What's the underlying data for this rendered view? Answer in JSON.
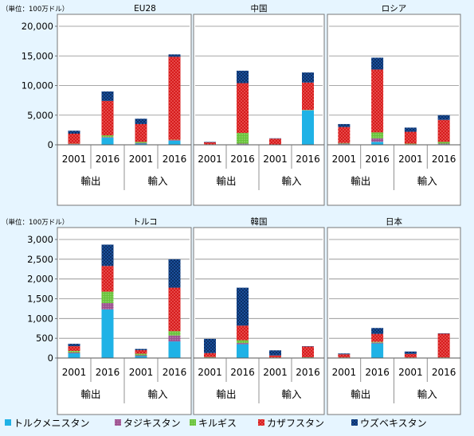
{
  "unit_label": "（単位：100万ドル）",
  "groups": [
    "輸出",
    "輸入"
  ],
  "colors": {
    "トルクメニスタン": "#1fb2e6",
    "タジキスタン": "#9b4f8e",
    "キルギス": "#67c23a",
    "カザフスタン": "#d61c1c",
    "ウズベキスタン": "#1a4f9a",
    "panel_bg": "#ffffff",
    "page_bg": "#e6f5ff"
  },
  "legend": [
    "トルクメニスタン",
    "タジキスタン",
    "キルギス",
    "カザフスタン",
    "ウズベキスタン"
  ],
  "chart_data": [
    {
      "type": "bar",
      "stacked": true,
      "title": "EU28",
      "ylim": [
        0,
        20000
      ],
      "yticks": [
        "0",
        "5,000",
        "10,000",
        "15,000",
        "20,000"
      ],
      "categories": [
        "2001",
        "2016",
        "2001",
        "2016"
      ],
      "groups": [
        "輸出",
        "輸入"
      ],
      "series": [
        {
          "name": "トルクメニスタン",
          "values": [
            100,
            1200,
            200,
            700
          ]
        },
        {
          "name": "タジキスタン",
          "values": [
            30,
            100,
            100,
            100
          ]
        },
        {
          "name": "キルギス",
          "values": [
            50,
            300,
            200,
            50
          ]
        },
        {
          "name": "カザフスタン",
          "values": [
            1700,
            5800,
            3000,
            14000
          ]
        },
        {
          "name": "ウズベキスタン",
          "values": [
            500,
            1600,
            900,
            400
          ]
        }
      ]
    },
    {
      "type": "bar",
      "stacked": true,
      "title": "中国",
      "ylim": [
        0,
        20000
      ],
      "categories": [
        "2001",
        "2016",
        "2001",
        "2016"
      ],
      "groups": [
        "輸出",
        "輸入"
      ],
      "series": [
        {
          "name": "トルクメニスタン",
          "values": [
            20,
            100,
            20,
            5800
          ]
        },
        {
          "name": "タジキスタン",
          "values": [
            10,
            100,
            10,
            50
          ]
        },
        {
          "name": "キルギス",
          "values": [
            50,
            1800,
            10,
            50
          ]
        },
        {
          "name": "カザフスタン",
          "values": [
            350,
            8400,
            1000,
            4600
          ]
        },
        {
          "name": "ウズベキスタン",
          "values": [
            70,
            2100,
            60,
            1700
          ]
        }
      ]
    },
    {
      "type": "bar",
      "stacked": true,
      "title": "ロシア",
      "ylim": [
        0,
        20000
      ],
      "categories": [
        "2001",
        "2016",
        "2001",
        "2016"
      ],
      "groups": [
        "輸出",
        "輸入"
      ],
      "series": [
        {
          "name": "トルクメニスタン",
          "values": [
            100,
            500,
            50,
            100
          ]
        },
        {
          "name": "タジキスタン",
          "values": [
            100,
            600,
            50,
            100
          ]
        },
        {
          "name": "キルギス",
          "values": [
            100,
            1000,
            100,
            300
          ]
        },
        {
          "name": "カザフスタン",
          "values": [
            2700,
            10600,
            2000,
            3700
          ]
        },
        {
          "name": "ウズベキスタン",
          "values": [
            500,
            2000,
            700,
            800
          ]
        }
      ]
    },
    {
      "type": "bar",
      "stacked": true,
      "title": "トルコ",
      "ylim": [
        0,
        3000
      ],
      "yticks": [
        "0",
        "500",
        "1,000",
        "1,500",
        "2,000",
        "2,500",
        "3,000"
      ],
      "categories": [
        "2001",
        "2016",
        "2001",
        "2016"
      ],
      "groups": [
        "輸出",
        "輸入"
      ],
      "series": [
        {
          "name": "トルクメニスタン",
          "values": [
            120,
            1230,
            50,
            420
          ]
        },
        {
          "name": "タジキスタン",
          "values": [
            20,
            160,
            20,
            150
          ]
        },
        {
          "name": "キルギス",
          "values": [
            40,
            290,
            40,
            110
          ]
        },
        {
          "name": "カザフスタン",
          "values": [
            120,
            650,
            90,
            1100
          ]
        },
        {
          "name": "ウズベキスタン",
          "values": [
            60,
            540,
            30,
            720
          ]
        }
      ]
    },
    {
      "type": "bar",
      "stacked": true,
      "title": "韓国",
      "ylim": [
        0,
        3000
      ],
      "categories": [
        "2001",
        "2016",
        "2001",
        "2016"
      ],
      "groups": [
        "輸出",
        "輸入"
      ],
      "series": [
        {
          "name": "トルクメニスタン",
          "values": [
            10,
            350,
            5,
            10
          ]
        },
        {
          "name": "タジキスタン",
          "values": [
            5,
            30,
            5,
            5
          ]
        },
        {
          "name": "キルギス",
          "values": [
            10,
            70,
            5,
            5
          ]
        },
        {
          "name": "カザフスタン",
          "values": [
            100,
            370,
            50,
            270
          ]
        },
        {
          "name": "ウズベキスタン",
          "values": [
            360,
            960,
            130,
            10
          ]
        }
      ]
    },
    {
      "type": "bar",
      "stacked": true,
      "title": "日本",
      "ylim": [
        0,
        3000
      ],
      "categories": [
        "2001",
        "2016",
        "2001",
        "2016"
      ],
      "groups": [
        "輸出",
        "輸入"
      ],
      "series": [
        {
          "name": "トルクメニスタン",
          "values": [
            5,
            370,
            5,
            5
          ]
        },
        {
          "name": "タジキスタン",
          "values": [
            5,
            20,
            5,
            5
          ]
        },
        {
          "name": "キルギス",
          "values": [
            5,
            20,
            5,
            5
          ]
        },
        {
          "name": "カザフスタン",
          "values": [
            80,
            200,
            90,
            600
          ]
        },
        {
          "name": "ウズベキスタン",
          "values": [
            20,
            150,
            60,
            10
          ]
        }
      ]
    }
  ]
}
